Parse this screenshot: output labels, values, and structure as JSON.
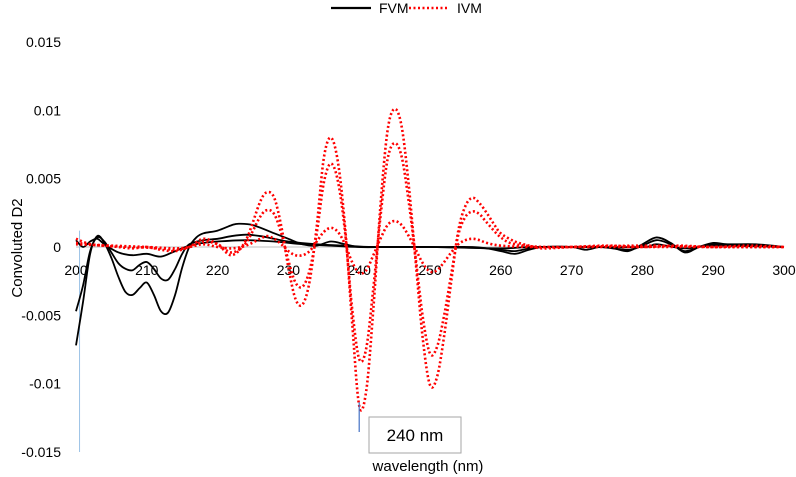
{
  "chart_data": {
    "type": "line",
    "title": "",
    "xlabel": "wavelength (nm)",
    "ylabel": "Convoluted D2",
    "xlim": [
      200,
      300
    ],
    "ylim": [
      -0.015,
      0.015
    ],
    "x_ticks": [
      "200",
      "210",
      "220",
      "230",
      "240",
      "250",
      "260",
      "270",
      "280",
      "290",
      "300"
    ],
    "y_ticks": [
      "0.015",
      "0.01",
      "0.005",
      "0",
      "-0.005",
      "-0.01",
      "-0.015"
    ],
    "grid": false,
    "legend_position": "top",
    "legend": [
      {
        "name": "FVM",
        "color": "#000000",
        "style": "solid"
      },
      {
        "name": "IVM",
        "color": "#ff0000",
        "style": "dotted"
      }
    ],
    "annotation": {
      "label": "240 nm",
      "x": 240,
      "line_color": "#4472c4"
    },
    "series": [
      {
        "name": "FVM",
        "color": "#000000",
        "style": "solid",
        "points": [
          [
            200,
            -0.0072
          ],
          [
            201,
            -0.004
          ],
          [
            202,
            -0.0005
          ],
          [
            203,
            0.0008
          ],
          [
            204,
            0.0003
          ],
          [
            205,
            -0.0008
          ],
          [
            206,
            -0.0022
          ],
          [
            207,
            -0.0033
          ],
          [
            208,
            -0.0035
          ],
          [
            209,
            -0.003
          ],
          [
            210,
            -0.0026
          ],
          [
            211,
            -0.0035
          ],
          [
            212,
            -0.0047
          ],
          [
            213,
            -0.0048
          ],
          [
            214,
            -0.0035
          ],
          [
            215,
            -0.0015
          ],
          [
            216,
            0.0
          ],
          [
            217,
            0.0007
          ],
          [
            218,
            0.001
          ],
          [
            220,
            0.0012
          ],
          [
            222,
            0.0016
          ],
          [
            223,
            0.0017
          ],
          [
            225,
            0.0016
          ],
          [
            228,
            0.001
          ],
          [
            230,
            0.0006
          ],
          [
            232,
            0.0002
          ],
          [
            234,
            0.0001
          ],
          [
            236,
            0.0004
          ],
          [
            238,
            0.0002
          ],
          [
            240,
            0.0
          ],
          [
            244,
            0.0
          ],
          [
            248,
            0.0
          ],
          [
            252,
            0.0
          ],
          [
            256,
            0.0
          ],
          [
            258,
            -0.0001
          ],
          [
            260,
            -0.0003
          ],
          [
            262,
            -0.0005
          ],
          [
            264,
            -0.0002
          ],
          [
            266,
            0.0
          ],
          [
            270,
            0.0
          ],
          [
            272,
            -0.0002
          ],
          [
            274,
            0.0
          ],
          [
            276,
            -0.0001
          ],
          [
            278,
            -0.0003
          ],
          [
            280,
            0.0002
          ],
          [
            282,
            0.0007
          ],
          [
            284,
            0.0003
          ],
          [
            286,
            -0.0004
          ],
          [
            288,
            0.0
          ],
          [
            290,
            0.0003
          ],
          [
            292,
            0.0002
          ],
          [
            296,
            0.0002
          ],
          [
            300,
            0.0
          ]
        ]
      },
      {
        "name": "FVM",
        "color": "#000000",
        "style": "solid",
        "points": [
          [
            200,
            -0.0047
          ],
          [
            201,
            -0.0028
          ],
          [
            202,
            -0.0003
          ],
          [
            203,
            0.0007
          ],
          [
            204,
            0.0004
          ],
          [
            205,
            -0.0004
          ],
          [
            206,
            -0.0012
          ],
          [
            207,
            -0.0016
          ],
          [
            208,
            -0.0017
          ],
          [
            209,
            -0.0013
          ],
          [
            210,
            -0.0011
          ],
          [
            211,
            -0.0016
          ],
          [
            212,
            -0.0023
          ],
          [
            213,
            -0.0024
          ],
          [
            214,
            -0.0016
          ],
          [
            215,
            -0.0005
          ],
          [
            216,
            0.0002
          ],
          [
            218,
            0.0005
          ],
          [
            220,
            0.0006
          ],
          [
            222,
            0.0008
          ],
          [
            224,
            0.0009
          ],
          [
            226,
            0.0008
          ],
          [
            228,
            0.0006
          ],
          [
            230,
            0.0004
          ],
          [
            234,
            0.0002
          ],
          [
            238,
            0.0001
          ],
          [
            242,
            0.0
          ],
          [
            250,
            0.0
          ],
          [
            258,
            -0.0001
          ],
          [
            260,
            -0.0002
          ],
          [
            262,
            -0.0003
          ],
          [
            264,
            -0.0001
          ],
          [
            266,
            0.0
          ],
          [
            270,
            0.0
          ],
          [
            274,
            0.0
          ],
          [
            278,
            -0.0002
          ],
          [
            280,
            0.0001
          ],
          [
            282,
            0.0005
          ],
          [
            284,
            0.0002
          ],
          [
            286,
            -0.0003
          ],
          [
            288,
            0.0
          ],
          [
            290,
            0.0002
          ],
          [
            292,
            0.0001
          ],
          [
            296,
            0.0001
          ],
          [
            300,
            0.0
          ]
        ]
      },
      {
        "name": "FVM",
        "color": "#000000",
        "style": "solid",
        "points": [
          [
            200,
            0.0005
          ],
          [
            201,
            0.0
          ],
          [
            202,
            0.0004
          ],
          [
            203,
            0.0006
          ],
          [
            204,
            0.0002
          ],
          [
            206,
            -0.0004
          ],
          [
            208,
            -0.0006
          ],
          [
            210,
            -0.0005
          ],
          [
            212,
            -0.0007
          ],
          [
            214,
            -0.0003
          ],
          [
            216,
            0.0001
          ],
          [
            218,
            0.0003
          ],
          [
            220,
            0.0004
          ],
          [
            224,
            0.0005
          ],
          [
            228,
            0.0004
          ],
          [
            232,
            0.0002
          ],
          [
            236,
            0.0001
          ],
          [
            240,
            0.0
          ],
          [
            250,
            0.0
          ],
          [
            260,
            -0.0001
          ],
          [
            264,
            0.0
          ],
          [
            270,
            0.0
          ],
          [
            280,
            0.0
          ],
          [
            282,
            0.0002
          ],
          [
            286,
            -0.0001
          ],
          [
            290,
            0.0001
          ],
          [
            300,
            0.0
          ]
        ]
      },
      {
        "name": "IVM",
        "color": "#ff0000",
        "style": "dotted",
        "points": [
          [
            200,
            0.0006
          ],
          [
            202,
            0.0002
          ],
          [
            204,
            0.0001
          ],
          [
            206,
            0.0
          ],
          [
            208,
            -0.0001
          ],
          [
            210,
            0.0
          ],
          [
            212,
            -0.0002
          ],
          [
            214,
            -0.0003
          ],
          [
            216,
            0.0
          ],
          [
            218,
            0.0006
          ],
          [
            220,
            0.0002
          ],
          [
            222,
            -0.0006
          ],
          [
            224,
            0.0005
          ],
          [
            226,
            0.0033
          ],
          [
            227,
            0.004
          ],
          [
            228,
            0.0036
          ],
          [
            229,
            0.0015
          ],
          [
            230,
            -0.0015
          ],
          [
            231,
            -0.0038
          ],
          [
            232,
            -0.0042
          ],
          [
            233,
            -0.0025
          ],
          [
            234,
            0.0015
          ],
          [
            235,
            0.0065
          ],
          [
            236,
            0.008
          ],
          [
            237,
            0.0062
          ],
          [
            238,
            0.0015
          ],
          [
            239,
            -0.0055
          ],
          [
            240,
            -0.0116
          ],
          [
            241,
            -0.0105
          ],
          [
            242,
            -0.0045
          ],
          [
            243,
            0.003
          ],
          [
            244,
            0.0085
          ],
          [
            245,
            0.0101
          ],
          [
            246,
            0.0088
          ],
          [
            247,
            0.0045
          ],
          [
            248,
            -0.0012
          ],
          [
            249,
            -0.0068
          ],
          [
            250,
            -0.0101
          ],
          [
            251,
            -0.0095
          ],
          [
            252,
            -0.0065
          ],
          [
            253,
            -0.0025
          ],
          [
            254,
            0.0012
          ],
          [
            255,
            0.003
          ],
          [
            256,
            0.0036
          ],
          [
            257,
            0.0032
          ],
          [
            258,
            0.0025
          ],
          [
            259,
            0.0017
          ],
          [
            260,
            0.001
          ],
          [
            262,
            0.0004
          ],
          [
            264,
            0.0001
          ],
          [
            266,
            -0.0001
          ],
          [
            270,
            0.0
          ],
          [
            275,
            0.0001
          ],
          [
            280,
            0.0
          ],
          [
            285,
            0.0001
          ],
          [
            290,
            0.0
          ],
          [
            295,
            0.0001
          ],
          [
            300,
            0.0
          ]
        ]
      },
      {
        "name": "IVM",
        "color": "#ff0000",
        "style": "dotted",
        "points": [
          [
            200,
            0.0003
          ],
          [
            204,
            0.0001
          ],
          [
            208,
            0.0
          ],
          [
            212,
            -0.0001
          ],
          [
            214,
            -0.0002
          ],
          [
            216,
            0.0
          ],
          [
            218,
            0.0004
          ],
          [
            220,
            0.0002
          ],
          [
            222,
            -0.0004
          ],
          [
            224,
            0.0003
          ],
          [
            226,
            0.0022
          ],
          [
            227,
            0.0027
          ],
          [
            228,
            0.0024
          ],
          [
            229,
            0.001
          ],
          [
            230,
            -0.001
          ],
          [
            231,
            -0.0026
          ],
          [
            232,
            -0.0029
          ],
          [
            233,
            -0.0017
          ],
          [
            234,
            0.001
          ],
          [
            235,
            0.0047
          ],
          [
            236,
            0.0061
          ],
          [
            237,
            0.0048
          ],
          [
            238,
            0.0011
          ],
          [
            239,
            -0.0045
          ],
          [
            240,
            -0.0082
          ],
          [
            241,
            -0.0074
          ],
          [
            242,
            -0.003
          ],
          [
            243,
            0.0022
          ],
          [
            244,
            0.0064
          ],
          [
            245,
            0.0076
          ],
          [
            246,
            0.0066
          ],
          [
            247,
            0.0033
          ],
          [
            248,
            -0.0009
          ],
          [
            249,
            -0.0052
          ],
          [
            250,
            -0.0078
          ],
          [
            251,
            -0.0073
          ],
          [
            252,
            -0.005
          ],
          [
            253,
            -0.002
          ],
          [
            254,
            0.0009
          ],
          [
            255,
            0.0022
          ],
          [
            256,
            0.0026
          ],
          [
            257,
            0.0024
          ],
          [
            258,
            0.0018
          ],
          [
            260,
            0.0007
          ],
          [
            262,
            0.0002
          ],
          [
            266,
            0.0
          ],
          [
            270,
            0.0
          ],
          [
            280,
            0.0001
          ],
          [
            290,
            0.0
          ],
          [
            300,
            0.0
          ]
        ]
      },
      {
        "name": "IVM",
        "color": "#ff0000",
        "style": "dotted",
        "points": [
          [
            200,
            0.0002
          ],
          [
            205,
            0.0001
          ],
          [
            210,
            0.0
          ],
          [
            214,
            -0.0001
          ],
          [
            216,
            0.0
          ],
          [
            218,
            0.0002
          ],
          [
            220,
            0.0
          ],
          [
            222,
            -0.0001
          ],
          [
            224,
            0.0001
          ],
          [
            226,
            0.0006
          ],
          [
            227,
            0.0008
          ],
          [
            228,
            0.0006
          ],
          [
            229,
            0.0002
          ],
          [
            230,
            -0.0003
          ],
          [
            231,
            -0.0006
          ],
          [
            232,
            -0.0006
          ],
          [
            233,
            -0.0003
          ],
          [
            234,
            0.0004
          ],
          [
            235,
            0.0011
          ],
          [
            236,
            0.0014
          ],
          [
            237,
            0.0011
          ],
          [
            238,
            0.0002
          ],
          [
            239,
            -0.0011
          ],
          [
            240,
            -0.0019
          ],
          [
            241,
            -0.0017
          ],
          [
            242,
            -0.0006
          ],
          [
            243,
            0.0006
          ],
          [
            244,
            0.0016
          ],
          [
            245,
            0.0019
          ],
          [
            246,
            0.0016
          ],
          [
            247,
            0.0008
          ],
          [
            248,
            -0.0002
          ],
          [
            249,
            -0.0012
          ],
          [
            250,
            -0.0018
          ],
          [
            251,
            -0.0017
          ],
          [
            252,
            -0.0011
          ],
          [
            253,
            -0.0004
          ],
          [
            254,
            0.0002
          ],
          [
            255,
            0.0005
          ],
          [
            256,
            0.0006
          ],
          [
            257,
            0.0005
          ],
          [
            258,
            0.0003
          ],
          [
            260,
            0.0001
          ],
          [
            264,
            0.0
          ],
          [
            270,
            0.0
          ],
          [
            280,
            0.0
          ],
          [
            290,
            0.0
          ],
          [
            300,
            0.0
          ]
        ]
      }
    ]
  }
}
